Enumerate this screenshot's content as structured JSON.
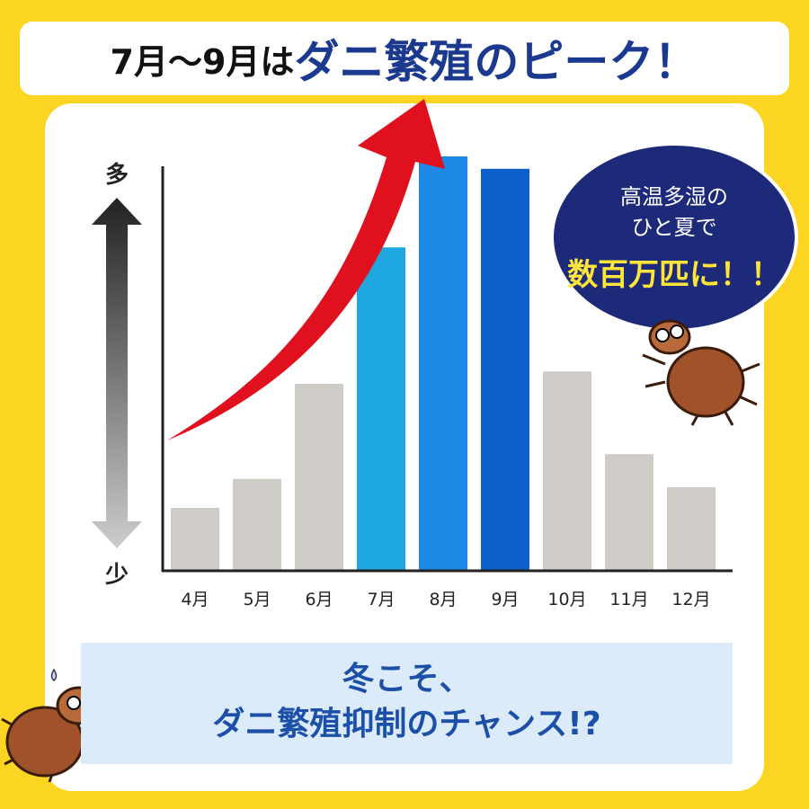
{
  "title": {
    "prefix": "7月～9月は",
    "highlight": "ダニ繁殖のピーク！"
  },
  "bubble": {
    "line1": "高温多湿の",
    "line2": "ひと夏で",
    "emphasis": "数百万匹に！！"
  },
  "bottom": {
    "line1": "冬こそ、",
    "line2": "ダニ繁殖抑制のチャンス!?"
  },
  "chart_data": {
    "type": "bar",
    "categories": [
      "4月",
      "5月",
      "6月",
      "7月",
      "8月",
      "9月",
      "10月",
      "11月",
      "12月"
    ],
    "values": [
      15,
      22,
      45,
      78,
      100,
      97,
      48,
      28,
      20
    ],
    "value_note": "relative (no numeric axis)",
    "ylabel_top": "多",
    "ylabel_bottom": "少",
    "colors": [
      "#cfccc7",
      "#cfccc7",
      "#cfccc7",
      "#1fa8e0",
      "#1e88e5",
      "#0d5fc9",
      "#cfccc7",
      "#cfccc7",
      "#cfccc7"
    ],
    "grid": false,
    "trend_arrow_color": "#e0101e"
  }
}
